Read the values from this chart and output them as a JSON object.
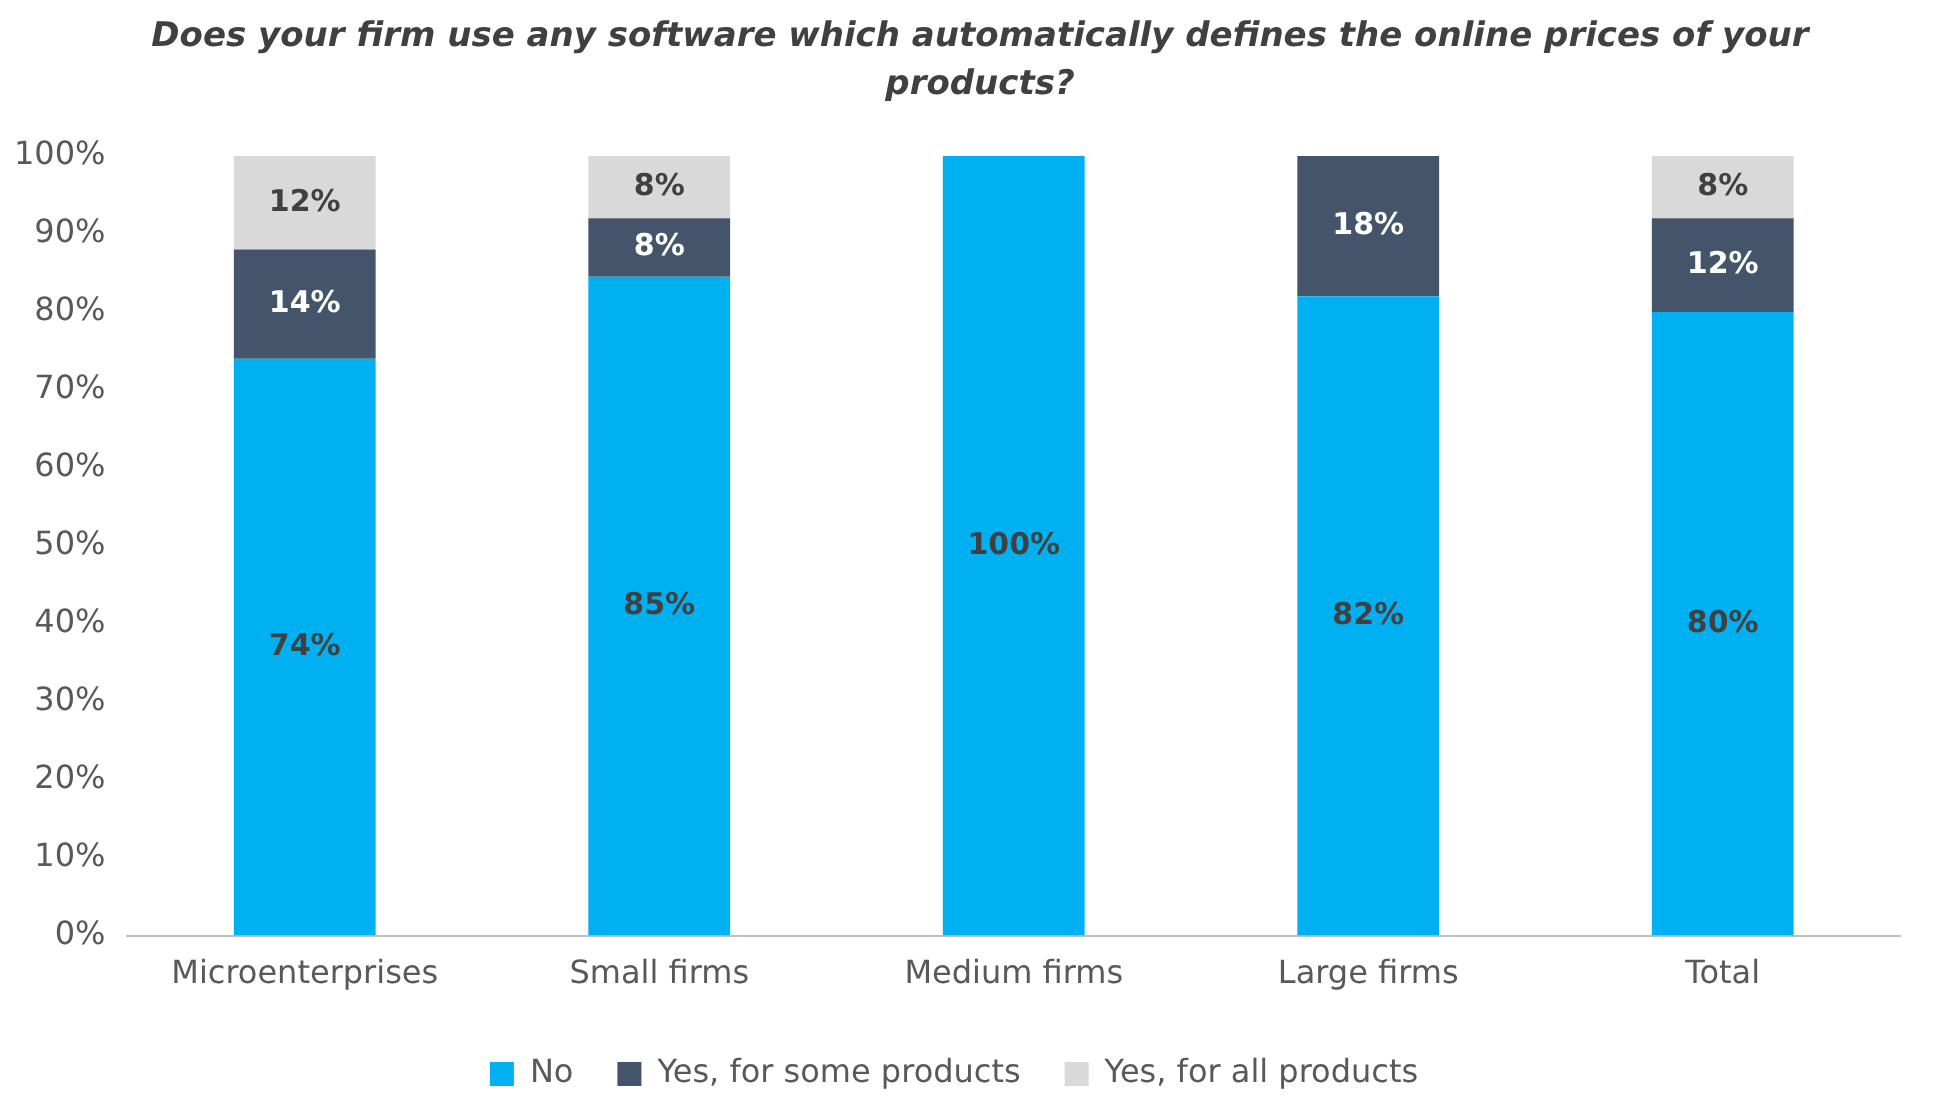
{
  "chart_data": {
    "type": "bar",
    "stacked": true,
    "title": "Does your firm use any software which automatically defines the online prices of your products?",
    "categories": [
      "Microenterprises",
      "Small firms",
      "Medium firms",
      "Large firms",
      "Total"
    ],
    "series": [
      {
        "name": "No",
        "color": "#00b0f0",
        "values": [
          74,
          84.5,
          100,
          82,
          80
        ],
        "value_labels": [
          "74%",
          "85%",
          "100%",
          "82%",
          "80%"
        ]
      },
      {
        "name": "Yes, for some products",
        "color": "#44546a",
        "values": [
          14,
          7.5,
          0,
          18,
          12
        ],
        "value_labels": [
          "14%",
          "8%",
          null,
          "18%",
          "12%"
        ]
      },
      {
        "name": "Yes, for all products",
        "color": "#d9d9d9",
        "values": [
          12,
          8,
          0,
          0,
          8
        ],
        "value_labels": [
          "12%",
          "8%",
          null,
          null,
          "8%"
        ]
      }
    ],
    "ylim": [
      0,
      100
    ],
    "yticks": [
      {
        "value": 0,
        "label": "0%"
      },
      {
        "value": 10,
        "label": "10%"
      },
      {
        "value": 20,
        "label": "20%"
      },
      {
        "value": 30,
        "label": "30%"
      },
      {
        "value": 40,
        "label": "40%"
      },
      {
        "value": 50,
        "label": "50%"
      },
      {
        "value": 60,
        "label": "60%"
      },
      {
        "value": 70,
        "label": "70%"
      },
      {
        "value": 80,
        "label": "80%"
      },
      {
        "value": 90,
        "label": "90%"
      },
      {
        "value": 100,
        "label": "100%"
      }
    ],
    "grid": false,
    "legend": "bottom"
  }
}
